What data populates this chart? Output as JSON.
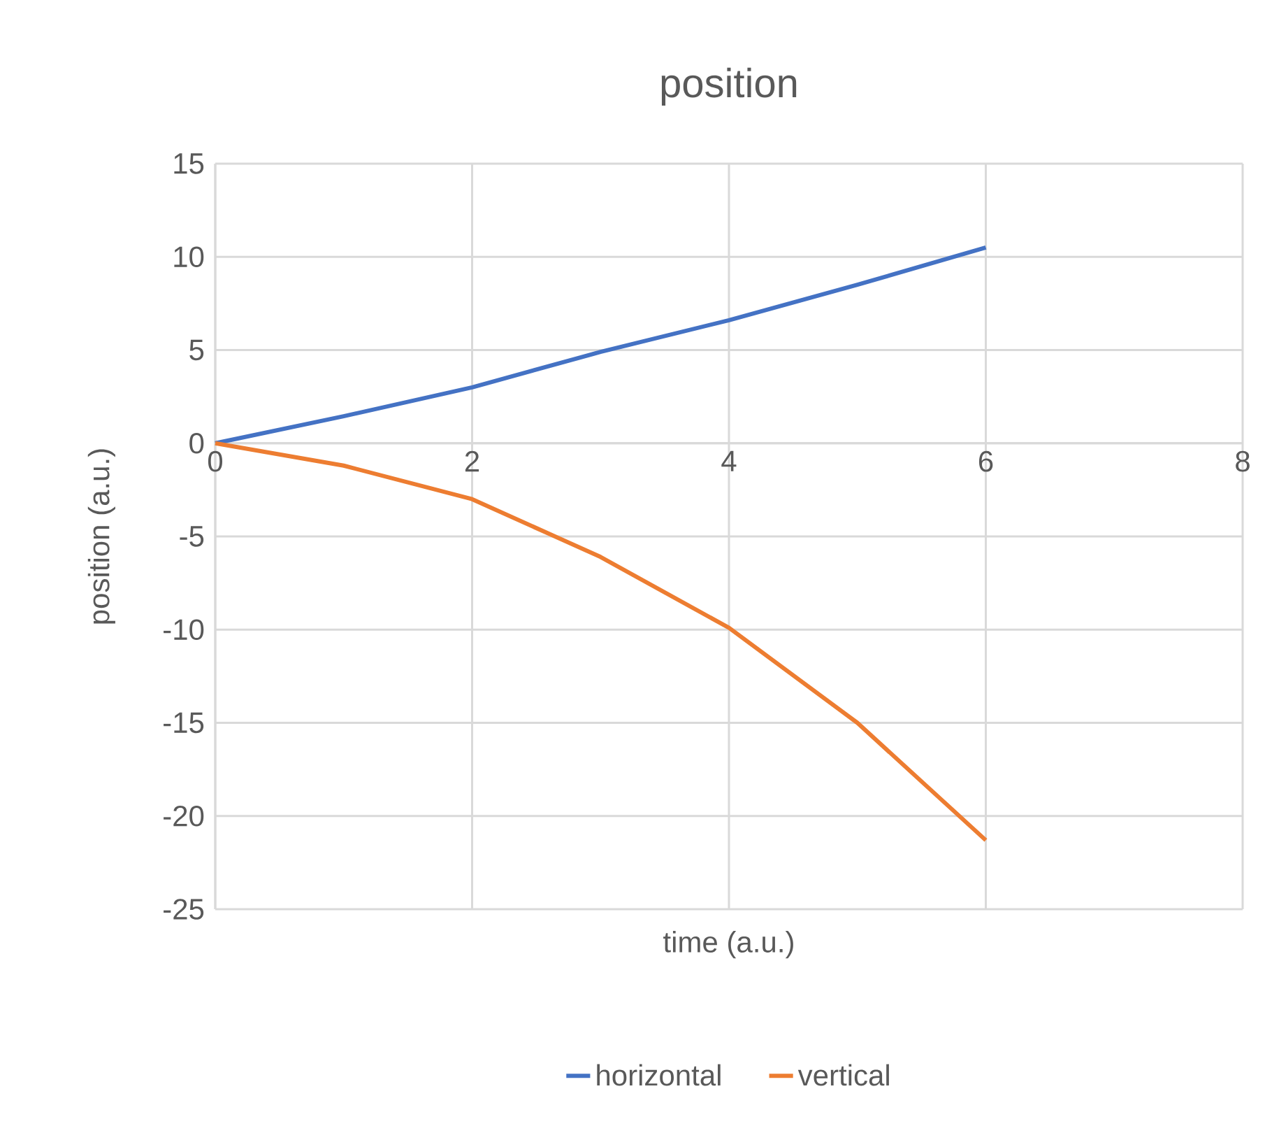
{
  "chart_data": {
    "type": "line",
    "title": "position",
    "xlabel": "time (a.u.)",
    "ylabel": "position (a.u.)",
    "x": [
      0,
      1,
      2,
      3,
      4,
      5,
      6
    ],
    "series": [
      {
        "name": "horizontal",
        "color": "#4472c4",
        "values": [
          0,
          1.45,
          3.0,
          4.9,
          6.6,
          8.5,
          10.5
        ]
      },
      {
        "name": "vertical",
        "color": "#ed7d31",
        "values": [
          0,
          -1.2,
          -3.0,
          -6.1,
          -9.9,
          -15.0,
          -21.3
        ]
      }
    ],
    "xlim": [
      0,
      8
    ],
    "xticks": [
      0,
      2,
      4,
      6,
      8
    ],
    "ylim": [
      -25,
      15
    ],
    "yticks": [
      -25,
      -20,
      -15,
      -10,
      -5,
      0,
      5,
      10,
      15
    ],
    "grid": true,
    "legend": "bottom",
    "marker": "none",
    "line_style": "solid"
  }
}
